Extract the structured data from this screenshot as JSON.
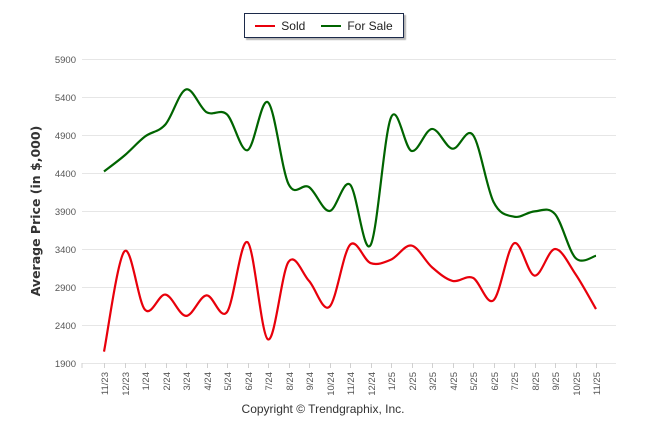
{
  "chart_data": {
    "type": "line",
    "title": "",
    "xlabel": "",
    "ylabel": "Average Price (in $,000)",
    "ylim": [
      1900,
      5900
    ],
    "yticks": [
      1900,
      2400,
      2900,
      3400,
      3900,
      4400,
      4900,
      5400,
      5900
    ],
    "grid": true,
    "legend_position": "top-center",
    "categories": [
      "11/23",
      "12/23",
      "1/24",
      "2/24",
      "3/24",
      "4/24",
      "5/24",
      "6/24",
      "7/24",
      "8/24",
      "9/24",
      "10/24",
      "11/24",
      "12/24",
      "1/25",
      "2/25",
      "3/25",
      "4/25",
      "5/25",
      "6/25",
      "7/25",
      "8/25",
      "9/25",
      "10/25",
      "11/25"
    ],
    "series": [
      {
        "name": "Sold",
        "color": "#e8000b",
        "values": [
          2050,
          3370,
          2600,
          2800,
          2520,
          2790,
          2570,
          3490,
          2210,
          3230,
          2980,
          2640,
          3455,
          3215,
          3260,
          3445,
          3160,
          2980,
          3020,
          2725,
          3475,
          3050,
          3400,
          3070,
          2610
        ]
      },
      {
        "name": "For Sale",
        "color": "#006400",
        "values": [
          4420,
          4630,
          4880,
          5040,
          5500,
          5200,
          5170,
          4700,
          5330,
          4255,
          4215,
          3900,
          4248,
          3450,
          5130,
          4690,
          4980,
          4720,
          4900,
          4020,
          3825,
          3895,
          3860,
          3282,
          3310
        ]
      }
    ]
  },
  "footer": {
    "copyright": "Copyright © Trendgraphix, Inc."
  }
}
